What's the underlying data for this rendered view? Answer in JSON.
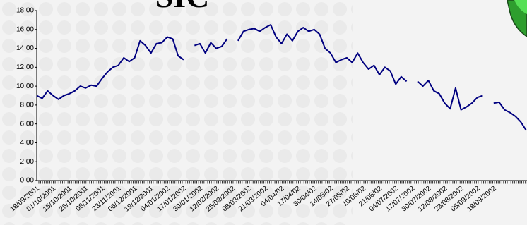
{
  "chart_data": {
    "type": "line",
    "title": "SIC",
    "categories": [
      "18/09/2001",
      null,
      null,
      "01/10/2001",
      null,
      null,
      "15/10/2001",
      null,
      null,
      "26/10/2001",
      null,
      null,
      "08/11/2001",
      null,
      null,
      "23/11/2001",
      null,
      null,
      "06/12/2001",
      null,
      null,
      "19/12/2001",
      null,
      null,
      "04/01/2002",
      null,
      null,
      "17/01/2002",
      null,
      null,
      "30/01/2002",
      null,
      null,
      "12/02/2002",
      null,
      null,
      "25/02/2002",
      null,
      null,
      "08/03/2002",
      null,
      null,
      "21/03/2002",
      null,
      null,
      "04/04/02",
      null,
      null,
      "17/04/02",
      null,
      null,
      "30/04/02",
      null,
      null,
      "14/05/02",
      null,
      null,
      "27/05/02",
      null,
      null,
      "10/06/02",
      null,
      null,
      "21/06/02",
      null,
      null,
      "04/07/2002",
      null,
      null,
      "17/07/2002",
      null,
      null,
      "30/07/2002",
      null,
      null,
      "12/08/2002",
      null,
      null,
      "23/08/2002",
      null,
      null,
      "05/09/2002",
      null,
      null,
      "18/09/2002",
      null,
      null,
      null,
      null,
      null,
      null
    ],
    "series": [
      {
        "color": "#000080",
        "values": [
          9.0,
          8.7,
          9.5,
          9.0,
          8.6,
          9.0,
          9.2,
          9.5,
          10.0,
          9.8,
          10.1,
          10.0,
          10.8,
          11.5,
          12.0,
          12.2,
          13.0,
          12.6,
          13.0,
          14.8,
          14.3,
          13.5,
          14.5,
          14.6,
          15.2,
          15.0,
          13.2,
          12.8,
          null,
          14.3,
          14.5,
          13.5,
          14.6,
          14.0,
          14.2,
          15.0,
          null,
          14.8,
          15.8,
          16.0,
          16.1,
          15.8,
          16.2,
          16.5,
          15.2,
          14.5,
          15.5,
          14.8,
          15.8,
          16.2,
          15.8,
          16.0,
          15.5,
          14.0,
          13.5,
          12.5,
          12.8,
          13.0,
          12.5,
          13.5,
          12.5,
          11.8,
          12.2,
          11.2,
          12.0,
          11.6,
          10.2,
          11.0,
          10.5,
          null,
          10.5,
          10.0,
          10.6,
          9.5,
          9.2,
          8.2,
          7.6,
          9.8,
          7.5,
          7.8,
          8.2,
          8.8,
          9.0,
          null,
          8.2,
          8.3,
          7.5,
          7.2,
          6.8,
          6.2,
          5.3
        ]
      }
    ],
    "ylim": [
      0,
      18
    ],
    "yticks": [
      {
        "value": 0,
        "label": "0,00"
      },
      {
        "value": 2,
        "label": "2,00"
      },
      {
        "value": 4,
        "label": "4,00"
      },
      {
        "value": 6,
        "label": "6,00"
      },
      {
        "value": 8,
        "label": "8,00"
      },
      {
        "value": 10,
        "label": "10,00"
      },
      {
        "value": 12,
        "label": "12,00"
      },
      {
        "value": 14,
        "label": "14,00"
      },
      {
        "value": 16,
        "label": "16,00"
      },
      {
        "value": 18,
        "label": "18,00"
      }
    ],
    "grid": false
  }
}
